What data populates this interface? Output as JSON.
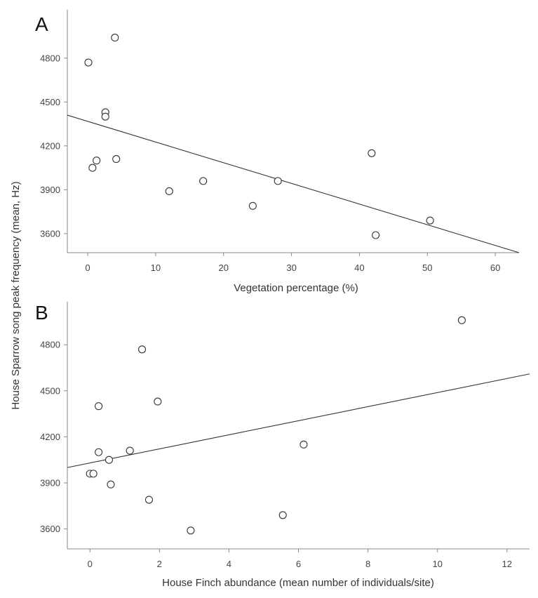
{
  "figure": {
    "ylabel": "House Sparrow song peak frequency (mean, Hz)"
  },
  "chart_data": [
    {
      "type": "scatter",
      "panel": "A",
      "xlabel": "Vegetation percentage (%)",
      "xlim": [
        -3,
        63.5
      ],
      "ylim": [
        3470,
        5130
      ],
      "xticks": [
        0,
        10,
        20,
        30,
        40,
        50,
        60
      ],
      "yticks": [
        3600,
        3900,
        4200,
        4500,
        4800
      ],
      "points": [
        {
          "x": 0.1,
          "y": 4770
        },
        {
          "x": 4.0,
          "y": 4940
        },
        {
          "x": 2.6,
          "y": 4430
        },
        {
          "x": 2.6,
          "y": 4400
        },
        {
          "x": 0.7,
          "y": 4050
        },
        {
          "x": 1.3,
          "y": 4100
        },
        {
          "x": 4.2,
          "y": 4110
        },
        {
          "x": 12.0,
          "y": 3890
        },
        {
          "x": 17.0,
          "y": 3960
        },
        {
          "x": 24.3,
          "y": 3790
        },
        {
          "x": 28.0,
          "y": 3960
        },
        {
          "x": 41.8,
          "y": 4150
        },
        {
          "x": 42.4,
          "y": 3590
        },
        {
          "x": 50.4,
          "y": 3690
        }
      ],
      "fit_line": {
        "x": [
          -3,
          63.5
        ],
        "y": [
          4410,
          3470
        ]
      }
    },
    {
      "type": "scatter",
      "panel": "B",
      "xlabel": "House Finch abundance (mean number of individuals/site)",
      "xlim": [
        -0.65,
        12.65
      ],
      "ylim": [
        3470,
        5080
      ],
      "xticks": [
        0,
        2,
        4,
        6,
        8,
        10,
        12
      ],
      "yticks": [
        3600,
        3900,
        4200,
        4500,
        4800
      ],
      "points": [
        {
          "x": 10.7,
          "y": 4960
        },
        {
          "x": 1.5,
          "y": 4770
        },
        {
          "x": 1.95,
          "y": 4430
        },
        {
          "x": 0.25,
          "y": 4400
        },
        {
          "x": 0.25,
          "y": 4100
        },
        {
          "x": 1.15,
          "y": 4110
        },
        {
          "x": 0.55,
          "y": 4050
        },
        {
          "x": 0.0,
          "y": 3960
        },
        {
          "x": 0.1,
          "y": 3960
        },
        {
          "x": 0.6,
          "y": 3890
        },
        {
          "x": 6.15,
          "y": 4150
        },
        {
          "x": 1.7,
          "y": 3790
        },
        {
          "x": 5.55,
          "y": 3690
        },
        {
          "x": 2.9,
          "y": 3590
        }
      ],
      "fit_line": {
        "x": [
          -0.65,
          12.65
        ],
        "y": [
          4000,
          4610
        ]
      }
    }
  ]
}
